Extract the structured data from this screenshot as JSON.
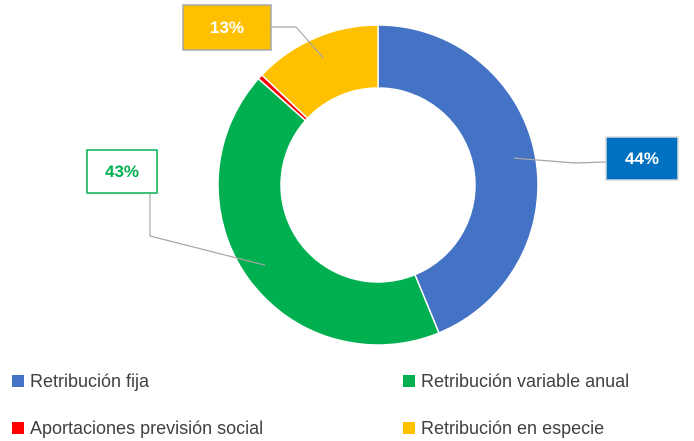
{
  "chart_data": {
    "type": "donut",
    "categories": [
      "Retribución fija",
      "Retribución variable anual",
      "Aportaciones previsión social",
      "Retribución en especie"
    ],
    "values": [
      44,
      43,
      0.5,
      13
    ],
    "value_labels": [
      "44%",
      "43%",
      null,
      "13%"
    ],
    "colors": [
      "#4472c4",
      "#00b050",
      "#ff0000",
      "#ffc000"
    ],
    "legend": "bottom"
  }
}
